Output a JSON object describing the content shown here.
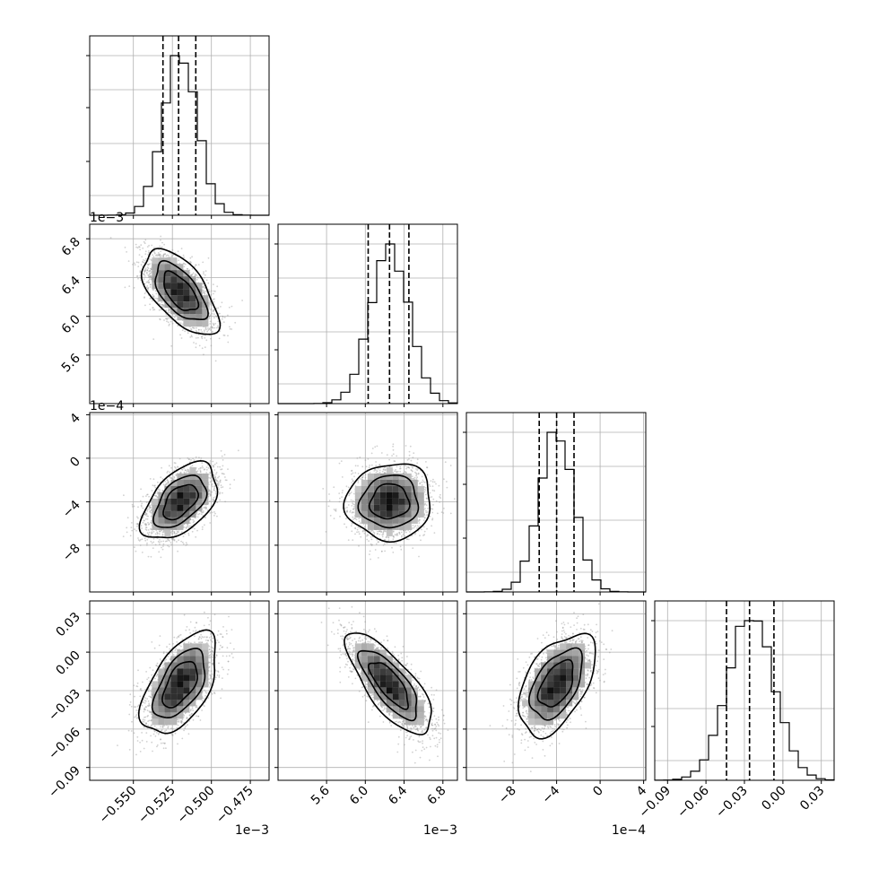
{
  "chart_data": {
    "type": "corner",
    "parameters": [
      {
        "id": "p0",
        "center": -0.52,
        "sigma": 0.011,
        "range": [
          -0.578,
          -0.463
        ],
        "quantiles": [
          -0.531,
          -0.521,
          -0.51
        ],
        "ticks": [
          -0.55,
          -0.525,
          -0.5,
          -0.475
        ],
        "tick_labels": [
          "−0.550",
          "−0.525",
          "−0.500",
          "−0.475"
        ],
        "offset_text": "1e−3"
      },
      {
        "id": "p1",
        "center": 6.25,
        "sigma": 0.2,
        "range": [
          5.1,
          6.95
        ],
        "quantiles": [
          6.03,
          6.25,
          6.45
        ],
        "ticks": [
          5.6,
          6.0,
          6.4,
          6.8
        ],
        "tick_labels": [
          "5.6",
          "6.0",
          "6.4",
          "6.8"
        ],
        "offset_text": "1e−3"
      },
      {
        "id": "p2",
        "center": -4.0,
        "sigma": 1.6,
        "range": [
          -12.3,
          4.2
        ],
        "quantiles": [
          -5.6,
          -4.0,
          -2.4
        ],
        "ticks": [
          -8,
          -4,
          0,
          4
        ],
        "tick_labels": [
          "−8",
          "−4",
          "0",
          "4"
        ],
        "offset_text": "1e−4"
      },
      {
        "id": "p3",
        "center": -0.025,
        "sigma": 0.018,
        "range": [
          -0.1,
          0.04
        ],
        "quantiles": [
          -0.044,
          -0.026,
          -0.007
        ],
        "ticks": [
          -0.09,
          -0.06,
          -0.03,
          0.0,
          0.03
        ],
        "tick_labels": [
          "−0.09",
          "−0.06",
          "−0.03",
          "0.00",
          "0.03"
        ],
        "offset_text": ""
      }
    ],
    "correlations": {
      "1-0": -0.6,
      "2-0": 0.5,
      "2-1": 0.05,
      "3-0": 0.55,
      "3-1": -0.75,
      "3-2": 0.5
    },
    "contour_levels_sigma": [
      1,
      1.5,
      2.2
    ],
    "grid": true
  }
}
